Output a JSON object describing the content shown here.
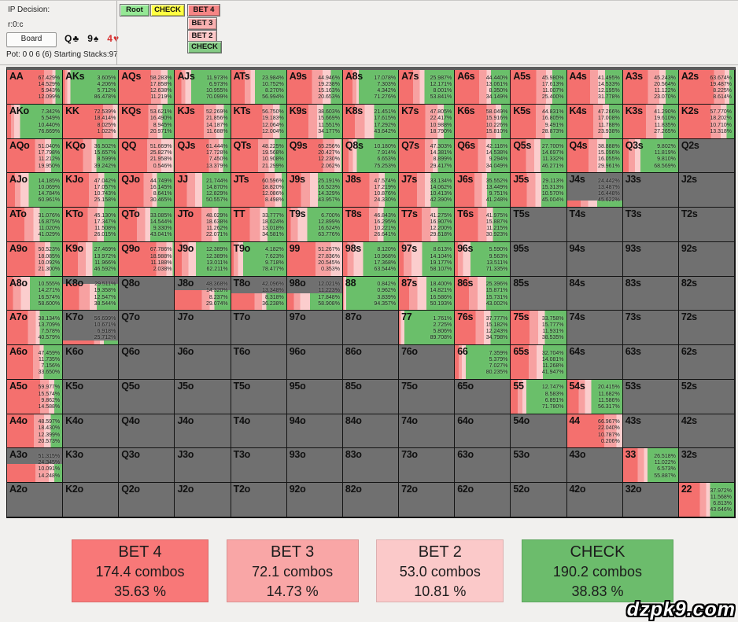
{
  "header": {
    "ip_decision": "IP Decision:",
    "node": "r:0:c",
    "board_label": "Board",
    "cards": [
      {
        "text": "Q♣",
        "color": "black"
      },
      {
        "text": "9♠",
        "color": "black"
      },
      {
        "text": "4♥",
        "color": "red"
      }
    ],
    "pot": "Pot: 0 0 6 (6) Starting Stacks:97"
  },
  "nav": {
    "root": "Root",
    "check_top": "CHECK",
    "bet4": "BET 4",
    "bet3": "BET 3",
    "bet2": "BET 2",
    "check_bottom": "CHECK"
  },
  "legend": {
    "items": [
      {
        "action": "BET 4",
        "combos": "174.4 combos",
        "percent": "35.63 %",
        "color": "#f87878"
      },
      {
        "action": "BET 3",
        "combos": "72.1 combos",
        "percent": "14.73 %",
        "color": "#f9a6a6"
      },
      {
        "action": "BET 2",
        "combos": "53.0 combos",
        "percent": "10.81 %",
        "color": "#fbc9c9"
      },
      {
        "action": "CHECK",
        "combos": "190.2 combos",
        "percent": "38.83 %",
        "color": "#6cbc6c"
      }
    ]
  },
  "watermark": "dzpk9.com",
  "chart_data": {
    "type": "heatmap",
    "title": "IP strategy range grid (13x13 poker hands)",
    "actions": [
      "BET 4",
      "BET 3",
      "BET 2",
      "CHECK"
    ],
    "colors": [
      "#f4706e",
      "#f7a1a1",
      "#fbcdcd",
      "#6abf6a"
    ],
    "empty_color": "#707070",
    "rows": [
      [
        [
          "AA",
          [
            67.429,
            14.529,
            5.943,
            12.099
          ]
        ],
        [
          "AKs",
          [
            3.605,
            4.206,
            5.712,
            86.478
          ]
        ],
        [
          "AQs",
          [
            58.283,
            17.858,
            12.638,
            11.219
          ]
        ],
        [
          "AJs",
          [
            11.973,
            6.973,
            10.955,
            70.099
          ]
        ],
        [
          "ATs",
          [
            23.984,
            10.752,
            8.27,
            56.994
          ]
        ],
        [
          "A9s",
          [
            44.946,
            19.238,
            15.163,
            20.653
          ]
        ],
        [
          "A8s",
          [
            17.078,
            7.303,
            4.342,
            71.276
          ]
        ],
        [
          "A7s",
          [
            25.987,
            12.171,
            8.001,
            53.841
          ]
        ],
        [
          "A6s",
          [
            44.44,
            13.061,
            8.35,
            34.149
          ]
        ],
        [
          "A5s",
          [
            45.98,
            17.613,
            11.007,
            25.4
          ]
        ],
        [
          "A4s",
          [
            41.495,
            14.533,
            12.195,
            31.778
          ]
        ],
        [
          "A3s",
          [
            45.243,
            20.564,
            11.122,
            23.07
          ]
        ],
        [
          "A2s",
          [
            63.674,
            19.487,
            8.225,
            8.614
          ]
        ]
      ],
      [
        [
          "AKo",
          [
            7.342,
            5.549,
            10.44,
            76.669
          ]
        ],
        [
          "KK",
          [
            72.539,
            18.414,
            8.025,
            1.022
          ]
        ],
        [
          "KQs",
          [
            53.621,
            16.49,
            8.945,
            20.971
          ]
        ],
        [
          "KJs",
          [
            52.269,
            21.856,
            14.187,
            11.688
          ]
        ],
        [
          "KTs",
          [
            56.75,
            19.183,
            12.064,
            12.004
          ]
        ],
        [
          "K9s",
          [
            38.603,
            15.669,
            11.551,
            34.177
          ]
        ],
        [
          "K8s",
          [
            21.451,
            17.615,
            17.292,
            43.642
          ]
        ],
        [
          "K7s",
          [
            47.805,
            22.417,
            10.988,
            18.79
          ]
        ],
        [
          "K6s",
          [
            58.049,
            15.916,
            10.226,
            15.81
          ]
        ],
        [
          "K5s",
          [
            44.831,
            16.805,
            9.491,
            28.873
          ]
        ],
        [
          "K4s",
          [
            47.266,
            17.008,
            11.788,
            23.938
          ]
        ],
        [
          "K3s",
          [
            41.29,
            19.61,
            11.835,
            27.265
          ]
        ],
        [
          "K2s",
          [
            57.77,
            18.202,
            10.71,
            13.318
          ]
        ]
      ],
      [
        [
          "AQo",
          [
            51.04,
            17.798,
            11.212,
            19.95
          ]
        ],
        [
          "KQo",
          [
            36.502,
            15.657,
            8.599,
            39.242
          ]
        ],
        [
          "QQ",
          [
            51.669,
            25.827,
            21.958,
            0.546
          ]
        ],
        [
          "QJs",
          [
            61.444,
            17.728,
            7.45,
            13.379
          ]
        ],
        [
          "QTs",
          [
            48.225,
            19.568,
            10.908,
            21.299
          ]
        ],
        [
          "Q9s",
          [
            65.256,
            20.427,
            12.23,
            2.062
          ]
        ],
        [
          "Q8s",
          [
            10.18,
            7.914,
            6.653,
            75.253
          ]
        ],
        [
          "Q7s",
          [
            47.303,
            14.381,
            8.899,
            29.417
          ]
        ],
        [
          "Q6s",
          [
            42.116,
            14.538,
            9.294,
            34.049
          ]
        ],
        [
          "Q5s",
          [
            27.7,
            14.697,
            11.332,
            46.271
          ]
        ],
        [
          "Q4s",
          [
            38.888,
            15.096,
            16.055,
            29.961
          ]
        ],
        [
          "Q3s",
          [
            9.802,
            11.819,
            9.81,
            68.569
          ]
        ],
        [
          "Q2s",
          null
        ]
      ],
      [
        [
          "AJo",
          [
            14.185,
            10.069,
            14.784,
            60.961
          ]
        ],
        [
          "KJo",
          [
            47.042,
            17.057,
            10.743,
            25.158
          ]
        ],
        [
          "QJo",
          [
            44.749,
            16.145,
            8.641,
            30.465
          ]
        ],
        [
          "JJ",
          [
            21.744,
            14.87,
            12.829,
            50.557
          ]
        ],
        [
          "JTs",
          [
            60.596,
            18.82,
            12.086,
            8.498
          ]
        ],
        [
          "J9s",
          [
            25.191,
            16.523,
            14.329,
            43.957
          ]
        ],
        [
          "J8s",
          [
            47.574,
            17.219,
            10.876,
            24.33
          ]
        ],
        [
          "J7s",
          [
            33.134,
            14.062,
            10.413,
            42.39
          ]
        ],
        [
          "J6s",
          [
            35.552,
            13.449,
            9.751,
            41.248
          ]
        ],
        [
          "J5s",
          [
            29.113,
            15.313,
            10.57,
            45.004
          ]
        ],
        [
          "J4s",
          [
            24.442,
            13.487,
            16.448,
            45.622
          ],
          0.2
        ],
        [
          "J3s",
          null
        ],
        [
          "J2s",
          null
        ]
      ],
      [
        [
          "ATo",
          [
            31.076,
            16.875,
            11.02,
            41.029
          ]
        ],
        [
          "KTo",
          [
            45.13,
            17.347,
            11.508,
            26.015
          ]
        ],
        [
          "QTo",
          [
            33.085,
            14.544,
            9.33,
            43.041
          ]
        ],
        [
          "JTo",
          [
            48.029,
            18.638,
            11.262,
            22.071
          ]
        ],
        [
          "TT",
          [
            33.777,
            18.624,
            13.018,
            34.581
          ]
        ],
        [
          "T9s",
          [
            6.7,
            12.899,
            16.624,
            63.776
          ]
        ],
        [
          "T8s",
          [
            46.843,
            16.295,
            10.221,
            26.641
          ]
        ],
        [
          "T7s",
          [
            41.275,
            16.907,
            12.2,
            29.618
          ]
        ],
        [
          "T6s",
          [
            41.975,
            15.887,
            11.215,
            30.923
          ]
        ],
        [
          "T5s",
          null
        ],
        [
          "T4s",
          null
        ],
        [
          "T3s",
          null
        ],
        [
          "T2s",
          null
        ]
      ],
      [
        [
          "A9o",
          [
            50.523,
            18.085,
            10.092,
            21.3
          ]
        ],
        [
          "K9o",
          [
            27.469,
            13.972,
            11.966,
            46.592
          ]
        ],
        [
          "Q9o",
          [
            67.786,
            18.988,
            11.188,
            2.038
          ]
        ],
        [
          "J9o",
          [
            12.389,
            12.389,
            13.011,
            62.211
          ]
        ],
        [
          "T9o",
          [
            4.182,
            7.623,
            9.718,
            78.477
          ]
        ],
        [
          "99",
          [
            51.267,
            27.836,
            20.545,
            0.353
          ]
        ],
        [
          "98s",
          [
            8.12,
            10.968,
            17.368,
            63.544
          ]
        ],
        [
          "97s",
          [
            8.613,
            14.104,
            19.177,
            58.107
          ]
        ],
        [
          "96s",
          [
            5.59,
            9.563,
            13.511,
            71.335
          ]
        ],
        [
          "95s",
          null
        ],
        [
          "94s",
          null
        ],
        [
          "93s",
          null
        ],
        [
          "92s",
          null
        ]
      ],
      [
        [
          "A8o",
          [
            10.555,
            14.271,
            16.574,
            58.6
          ]
        ],
        [
          "K8o",
          [
            29.511,
            19.358,
            12.547,
            38.544
          ],
          0.78
        ],
        [
          "Q8o",
          null
        ],
        [
          "J8o",
          [
            48.368,
            14.32,
            8.237,
            29.074
          ],
          0.6
        ],
        [
          "T8o",
          [
            42.096,
            13.348,
            8.318,
            36.238
          ],
          0.5
        ],
        [
          "98o",
          [
            12.021,
            11.223,
            17.848,
            58.908
          ],
          0.5
        ],
        [
          "88",
          [
            0.842,
            0.962,
            3.839,
            94.357
          ]
        ],
        [
          "87s",
          [
            18.4,
            14.821,
            16.586,
            50.193
          ]
        ],
        [
          "86s",
          [
            25.396,
            15.871,
            15.731,
            43.002
          ]
        ],
        [
          "85s",
          null
        ],
        [
          "84s",
          null
        ],
        [
          "83s",
          null
        ],
        [
          "82s",
          null
        ]
      ],
      [
        [
          "A7o",
          [
            38.134,
            13.709,
            7.578,
            40.579
          ]
        ],
        [
          "K7o",
          [
            56.699,
            10.671,
            6.918,
            25.712
          ],
          0.12
        ],
        [
          "Q7o",
          null
        ],
        [
          "J7o",
          null
        ],
        [
          "T7o",
          null
        ],
        [
          "97o",
          null
        ],
        [
          "87o",
          null
        ],
        [
          "77",
          [
            1.761,
            2.725,
            5.806,
            89.708
          ]
        ],
        [
          "76s",
          [
            37.777,
            15.182,
            12.243,
            34.798
          ]
        ],
        [
          "75s",
          [
            33.758,
            15.777,
            11.931,
            38.535
          ]
        ],
        [
          "74s",
          null
        ],
        [
          "73s",
          null
        ],
        [
          "72s",
          null
        ]
      ],
      [
        [
          "A6o",
          [
            47.459,
            11.735,
            7.156,
            33.65
          ]
        ],
        [
          "K6o",
          null
        ],
        [
          "Q6o",
          null
        ],
        [
          "J6o",
          null
        ],
        [
          "T6o",
          null
        ],
        [
          "96o",
          null
        ],
        [
          "86o",
          null
        ],
        [
          "76o",
          null
        ],
        [
          "66",
          [
            7.359,
            5.379,
            7.027,
            80.235
          ]
        ],
        [
          "65s",
          [
            32.704,
            14.081,
            11.268,
            41.947
          ]
        ],
        [
          "64s",
          null
        ],
        [
          "63s",
          null
        ],
        [
          "62s",
          null
        ]
      ],
      [
        [
          "A5o",
          [
            59.977,
            15.574,
            9.862,
            14.588
          ]
        ],
        [
          "K5o",
          null
        ],
        [
          "Q5o",
          null
        ],
        [
          "J5o",
          null
        ],
        [
          "T5o",
          null
        ],
        [
          "95o",
          null
        ],
        [
          "85o",
          null
        ],
        [
          "75o",
          null
        ],
        [
          "65o",
          null
        ],
        [
          "55",
          [
            12.747,
            8.583,
            6.891,
            71.78
          ]
        ],
        [
          "54s",
          [
            20.415,
            11.682,
            11.586,
            56.317
          ]
        ],
        [
          "53s",
          null
        ],
        [
          "52s",
          null
        ]
      ],
      [
        [
          "A4o",
          [
            48.597,
            18.43,
            12.399,
            20.573
          ]
        ],
        [
          "K4o",
          null
        ],
        [
          "Q4o",
          null
        ],
        [
          "J4o",
          null
        ],
        [
          "T4o",
          null
        ],
        [
          "94o",
          null
        ],
        [
          "84o",
          null
        ],
        [
          "74o",
          null
        ],
        [
          "64o",
          null
        ],
        [
          "54o",
          null
        ],
        [
          "44",
          [
            66.967,
            22.04,
            10.787,
            0.206
          ]
        ],
        [
          "43s",
          null
        ],
        [
          "42s",
          null
        ]
      ],
      [
        [
          "A3o",
          [
            51.315,
            24.345,
            10.091,
            14.248
          ],
          0.55
        ],
        [
          "K3o",
          null
        ],
        [
          "Q3o",
          null
        ],
        [
          "J3o",
          null
        ],
        [
          "T3o",
          null
        ],
        [
          "93o",
          null
        ],
        [
          "83o",
          null
        ],
        [
          "73o",
          null
        ],
        [
          "63o",
          null
        ],
        [
          "53o",
          null
        ],
        [
          "43o",
          null
        ],
        [
          "33",
          [
            26.518,
            11.022,
            6.573,
            55.887
          ]
        ],
        [
          "32s",
          null
        ]
      ],
      [
        [
          "A2o",
          null
        ],
        [
          "K2o",
          null
        ],
        [
          "Q2o",
          null
        ],
        [
          "J2o",
          null
        ],
        [
          "T2o",
          null
        ],
        [
          "92o",
          null
        ],
        [
          "82o",
          null
        ],
        [
          "72o",
          null
        ],
        [
          "62o",
          null
        ],
        [
          "52o",
          null
        ],
        [
          "42o",
          null
        ],
        [
          "32o",
          null
        ],
        [
          "22",
          [
            37.972,
            11.568,
            6.813,
            43.646
          ]
        ]
      ]
    ]
  }
}
